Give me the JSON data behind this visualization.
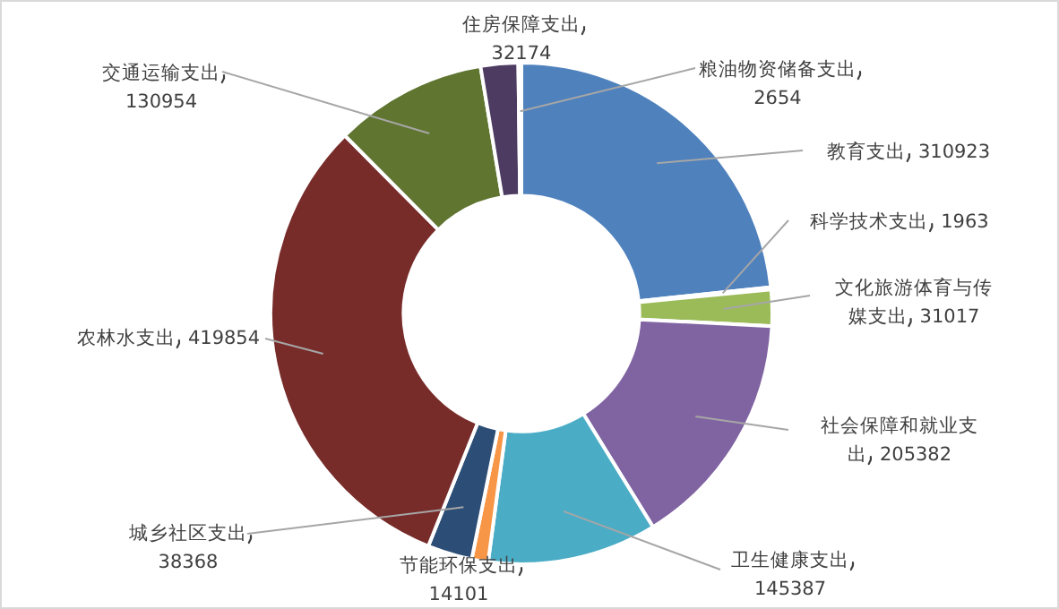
{
  "chart_data": {
    "type": "donut",
    "categories": [
      "教育支出",
      "科学技术支出",
      "文化旅游体育与传媒支出",
      "社会保障和就业支出",
      "卫生健康支出",
      "节能环保支出",
      "城乡社区支出",
      "农林水支出",
      "交通运输支出",
      "住房保障支出",
      "粮油物资储备支出"
    ],
    "values": [
      310923,
      1963,
      31017,
      205382,
      145387,
      14101,
      38368,
      419854,
      130954,
      32174,
      2654
    ],
    "colors": [
      "#4f81bd",
      "#c0504d",
      "#9bbb59",
      "#8064a2",
      "#4bacc6",
      "#f79646",
      "#2c4d75",
      "#772c2a",
      "#5f7530",
      "#4d3b62",
      "#276a7c"
    ],
    "data_labels": true,
    "legend": false
  }
}
